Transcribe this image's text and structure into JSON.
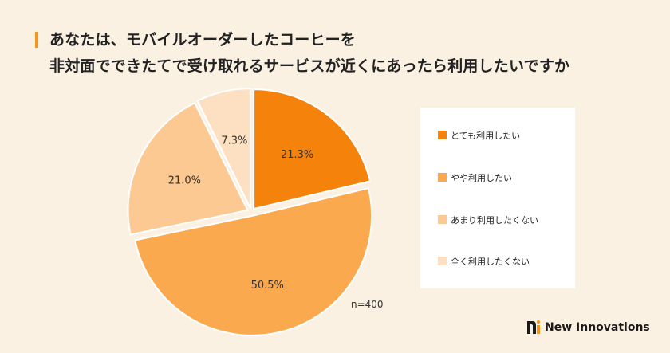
{
  "title": {
    "line1": "あなたは、モバイルオーダーしたコーヒーを",
    "line2": "非対面でできたてで受け取れるサービスが近くにあったら利用したいですか"
  },
  "chart_data": {
    "type": "pie",
    "slices": [
      {
        "label": "とても利用したい",
        "value": 21.3,
        "display": "21.3%",
        "color": "#f5820a"
      },
      {
        "label": "やや利用したい",
        "value": 50.5,
        "display": "50.5%",
        "color": "#fba94e"
      },
      {
        "label": "あまり利用したくない",
        "value": 21.0,
        "display": "21.0%",
        "color": "#fcc993"
      },
      {
        "label": "全く利用したくない",
        "value": 7.3,
        "display": "7.3%",
        "color": "#fde0c2"
      }
    ],
    "legend_position": "right",
    "sample_size": "n=400"
  },
  "brand": {
    "name": "New Innovations",
    "color": "#1a1a1a",
    "accent": "#f7941d"
  }
}
